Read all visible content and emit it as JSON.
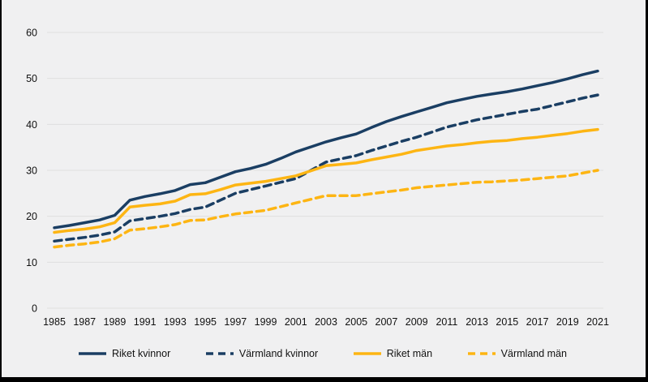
{
  "chart_data": {
    "type": "line",
    "title": "",
    "xlabel": "",
    "ylabel": "",
    "ylim": [
      0,
      60
    ],
    "y_ticks": [
      0,
      10,
      20,
      30,
      40,
      50,
      60
    ],
    "x_ticks": [
      1985,
      1987,
      1989,
      1991,
      1993,
      1995,
      1997,
      1999,
      2001,
      2003,
      2005,
      2007,
      2009,
      2011,
      2013,
      2015,
      2017,
      2019,
      2021
    ],
    "x": [
      1985,
      1986,
      1987,
      1988,
      1989,
      1990,
      1991,
      1992,
      1993,
      1994,
      1995,
      1996,
      1997,
      1998,
      1999,
      2000,
      2001,
      2002,
      2003,
      2004,
      2005,
      2006,
      2007,
      2008,
      2009,
      2010,
      2011,
      2012,
      2013,
      2014,
      2015,
      2016,
      2017,
      2018,
      2019,
      2020,
      2021
    ],
    "grid": "horizontal",
    "legend_position": "bottom",
    "background_color": "#f0f0f1",
    "gridline_color": "#dfdfdf",
    "series": [
      {
        "name": "Riket kvinnor",
        "color": "#1a3e63",
        "dash": "solid",
        "values": [
          17.5,
          18.0,
          18.6,
          19.2,
          20.2,
          23.5,
          24.3,
          24.9,
          25.6,
          26.9,
          27.3,
          28.5,
          29.7,
          30.4,
          31.3,
          32.6,
          34.0,
          35.1,
          36.2,
          37.1,
          37.9,
          39.3,
          40.6,
          41.7,
          42.7,
          43.7,
          44.7,
          45.4,
          46.1,
          46.6,
          47.1,
          47.7,
          48.4,
          49.1,
          49.9,
          50.8,
          51.6
        ]
      },
      {
        "name": "Värmland kvinnor",
        "color": "#1a3e63",
        "dash": "dashed",
        "values": [
          14.6,
          15.0,
          15.4,
          15.9,
          16.6,
          19.0,
          19.5,
          20.0,
          20.6,
          21.5,
          22.0,
          23.5,
          25.0,
          25.8,
          26.6,
          27.4,
          28.2,
          30.0,
          31.8,
          32.5,
          33.2,
          34.3,
          35.3,
          36.3,
          37.2,
          38.3,
          39.4,
          40.2,
          41.0,
          41.6,
          42.2,
          42.8,
          43.3,
          44.1,
          44.9,
          45.7,
          46.4
        ]
      },
      {
        "name": "Riket män",
        "color": "#fdb513",
        "dash": "solid",
        "values": [
          16.5,
          16.9,
          17.2,
          17.7,
          18.6,
          22.0,
          22.4,
          22.7,
          23.3,
          24.7,
          24.9,
          25.8,
          26.8,
          27.2,
          27.6,
          28.2,
          28.8,
          29.9,
          31.0,
          31.3,
          31.6,
          32.3,
          32.9,
          33.5,
          34.3,
          34.8,
          35.3,
          35.6,
          36.0,
          36.3,
          36.5,
          36.9,
          37.2,
          37.6,
          38.0,
          38.5,
          38.9
        ]
      },
      {
        "name": "Värmland män",
        "color": "#fdb513",
        "dash": "dashed",
        "values": [
          13.3,
          13.7,
          14.0,
          14.4,
          15.1,
          17.0,
          17.3,
          17.7,
          18.2,
          19.1,
          19.2,
          19.9,
          20.5,
          20.9,
          21.3,
          22.1,
          22.9,
          23.7,
          24.5,
          24.5,
          24.5,
          24.9,
          25.3,
          25.7,
          26.2,
          26.5,
          26.8,
          27.1,
          27.4,
          27.5,
          27.7,
          27.9,
          28.2,
          28.5,
          28.8,
          29.4,
          30.0
        ]
      }
    ]
  }
}
